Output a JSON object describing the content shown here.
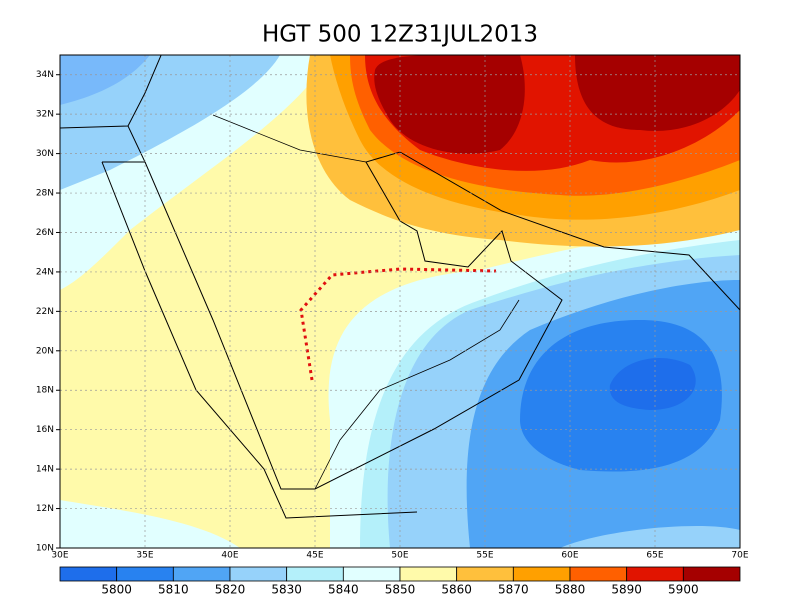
{
  "title": "HGT 500 12Z31JUL2013",
  "lon_labels": [
    "30E",
    "35E",
    "40E",
    "45E",
    "50E",
    "55E",
    "60E",
    "65E",
    "70E"
  ],
  "lat_labels": [
    "10N",
    "12N",
    "14N",
    "16N",
    "18N",
    "20N",
    "22N",
    "24N",
    "26N",
    "28N",
    "30N",
    "32N",
    "34N"
  ],
  "colorbar": {
    "labels": [
      5800,
      5810,
      5820,
      5830,
      5840,
      5850,
      5860,
      5870,
      5880,
      5890,
      5900
    ],
    "colors": [
      "#1e6eeb",
      "#2882f0",
      "#50a5f5",
      "#96d2fa",
      "#b4f0fa",
      "#e1ffff",
      "#fffaaa",
      "#ffc03c",
      "#ffa000",
      "#ff6000",
      "#e11400",
      "#a50000"
    ]
  }
}
